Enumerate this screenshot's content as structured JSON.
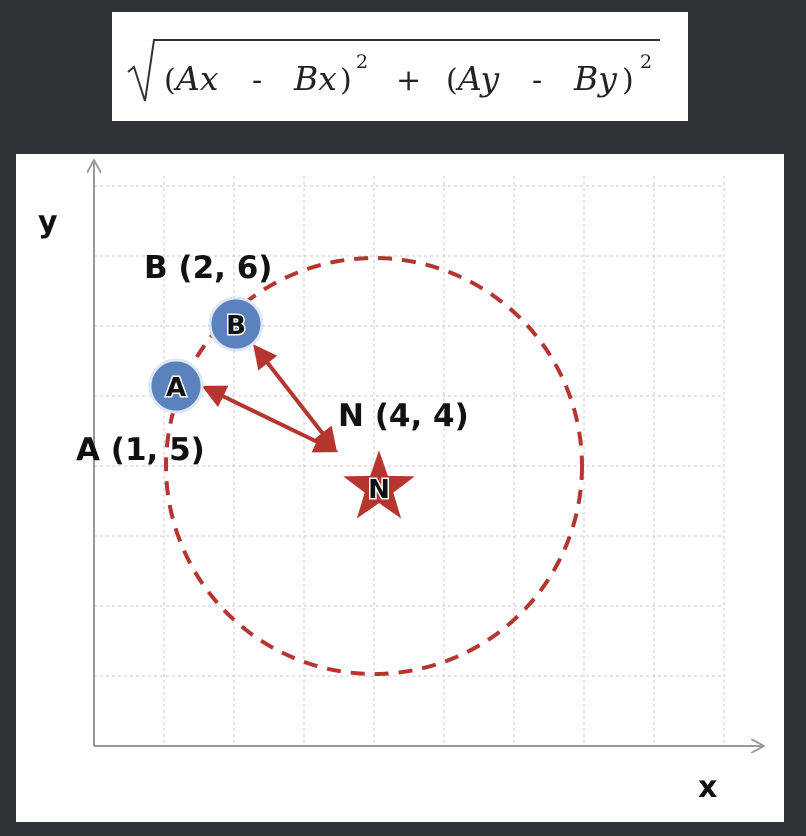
{
  "formula": {
    "t1": "(",
    "ax": "Ax",
    "m1": "-",
    "bx": "Bx",
    "c1": ")",
    "e1": "2",
    "plus": "+",
    "t2": "(",
    "ay": "Ay",
    "m2": "-",
    "by": "By",
    "c2": ")",
    "e2": "2"
  },
  "axes": {
    "x_label": "x",
    "y_label": "y"
  },
  "points": {
    "A": {
      "letter": "A",
      "label": "A (1, 5)",
      "x": 1,
      "y": 5
    },
    "B": {
      "letter": "B",
      "label": "B (2, 6)",
      "x": 2,
      "y": 6
    },
    "N": {
      "letter": "N",
      "label": "N (4, 4)",
      "x": 4,
      "y": 4
    }
  },
  "chart_data": {
    "type": "scatter",
    "xlim": [
      0,
      9
    ],
    "ylim": [
      0,
      8
    ],
    "grid": true,
    "circle": {
      "center": [
        4,
        4
      ],
      "radius": 3
    }
  },
  "colors": {
    "point_fill": "#5b82bd",
    "point_ring": "#dde7f4",
    "circle_and_arrows": "#b5362f",
    "grid": "#c8c8c8",
    "axis": "#999999",
    "background_dark": "#2f3236"
  }
}
